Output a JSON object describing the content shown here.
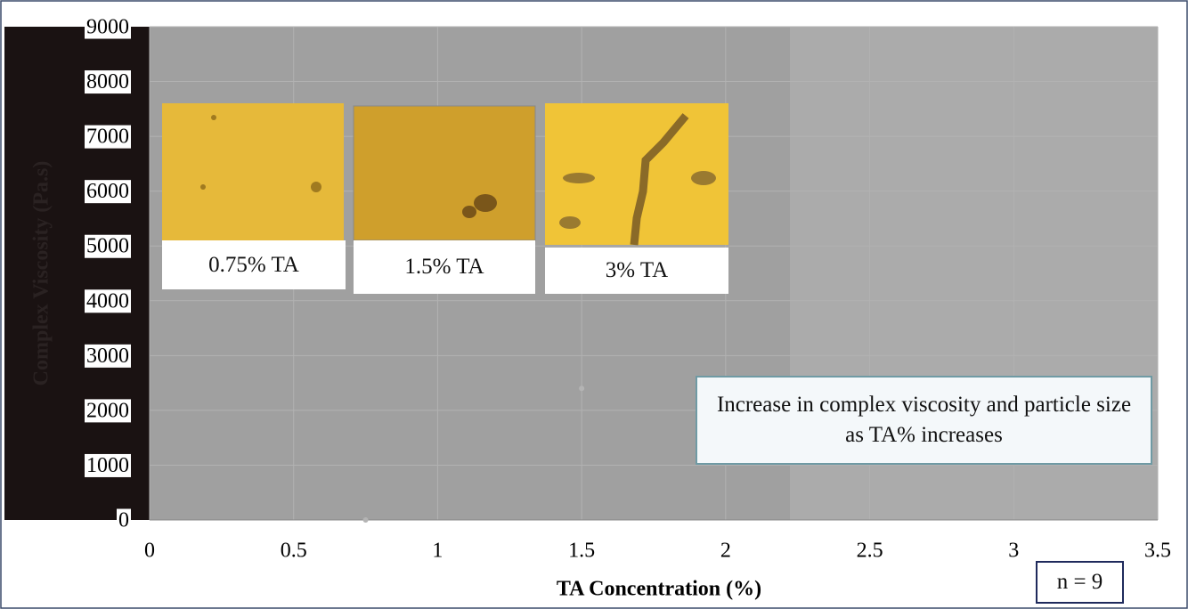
{
  "chart_data": {
    "type": "scatter",
    "x_label": "TA Concentration (%)",
    "y_label": "Complex Viscosity (Pa.s)",
    "xlim": [
      0,
      3.5
    ],
    "xticks": [
      0,
      0.5,
      1,
      1.5,
      2,
      2.5,
      3,
      3.5
    ],
    "ylim": [
      0,
      9000
    ],
    "yticks": [
      0,
      1000,
      2000,
      3000,
      4000,
      5000,
      6000,
      7000,
      8000,
      9000
    ],
    "grid": true,
    "series": [
      {
        "color": "#b4b4b4",
        "x": [
          0.75,
          1.5
        ],
        "values": [
          0,
          2400
        ]
      }
    ],
    "image_labels": [
      "0.75% TA",
      "1.5% TA",
      "3% TA"
    ],
    "annotation": "Increase in complex viscosity and particle size as TA% increases",
    "sample_size": "n = 9"
  }
}
